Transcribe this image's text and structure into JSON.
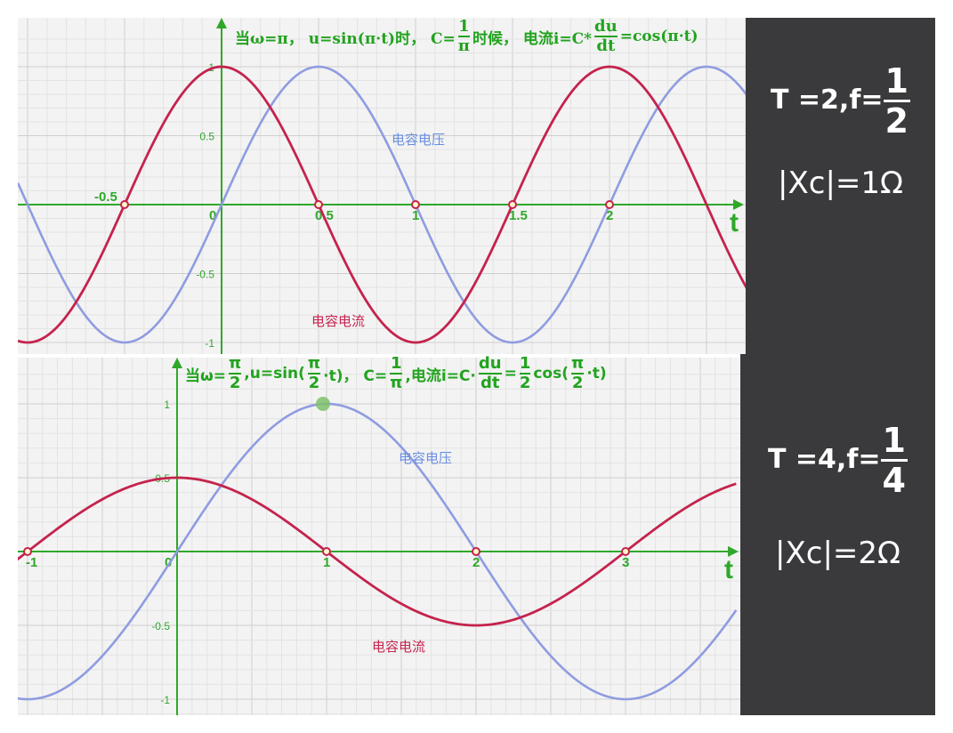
{
  "colors": {
    "voltage": "#8f9ce0",
    "current": "#c4234d",
    "axis": "#2fa82a",
    "side_bg": "#3a3a3c",
    "panel_bg": "#f3f3f3"
  },
  "top_formula": {
    "prefix": "当ω=π，  u=sin(π·t)时，  C=",
    "c_num": "1",
    "c_den": "π",
    "mid": "时候，  电流i=C*",
    "d_num": "du",
    "d_den": "dt",
    "suffix": "=cos(π·t)"
  },
  "bottom_formula": {
    "p1": "当ω=",
    "w_num": "π",
    "w_den": "2",
    "p2": ",u=sin(",
    "s_num": "π",
    "s_den": "2",
    "p3": "·t)，  C=",
    "c_num": "1",
    "c_den": "π",
    "p4": ",电流i=C·",
    "d_num": "du",
    "d_den": "dt",
    "p5": "=",
    "h_num": "1",
    "h_den": "2",
    "p6": "cos(",
    "k_num": "π",
    "k_den": "2",
    "p7": "·t)"
  },
  "side_top": {
    "tf_text": "T =2,f=",
    "f_num": "1",
    "f_den": "2",
    "xc_text": "|Xc|=1Ω"
  },
  "side_bottom": {
    "tf_text": "T =4,f=",
    "f_num": "1",
    "f_den": "4",
    "xc_text": "|Xc|=2Ω"
  },
  "chart_data": [
    {
      "type": "line",
      "xlim": [
        -1.05,
        2.73
      ],
      "ylim": [
        -1.05,
        1.0
      ],
      "x_ticks": [
        "-0.5",
        "0",
        "0.5",
        "1",
        "1.5",
        "2"
      ],
      "x_tick_values": [
        -0.5,
        0,
        0.5,
        1,
        1.5,
        2
      ],
      "y_ticks": [
        "1",
        "0.5",
        "-0.5",
        "-1"
      ],
      "y_tick_values": [
        1,
        0.5,
        -0.5,
        -1
      ],
      "xlabel": "t",
      "grid": true,
      "series": [
        {
          "name": "电容电压",
          "function": "sin(pi*t)",
          "omega": 3.14159265,
          "amplitude": 1,
          "phase": "sin"
        },
        {
          "name": "电容电流",
          "function": "cos(pi*t)",
          "omega": 3.14159265,
          "amplitude": 1,
          "phase": "cos"
        }
      ],
      "zero_crossings": [
        -0.5,
        0.5,
        1,
        1.5,
        2
      ]
    },
    {
      "type": "line",
      "xlim": [
        -1.1,
        3.74
      ],
      "ylim": [
        -1.0,
        1.0
      ],
      "x_ticks": [
        "-1",
        "0",
        "1",
        "2",
        "3"
      ],
      "x_tick_values": [
        -1,
        0,
        1,
        2,
        3
      ],
      "y_ticks": [
        "1",
        "0.5",
        "-0.5",
        "-1"
      ],
      "y_tick_values": [
        1,
        0.5,
        -0.5,
        -1
      ],
      "xlabel": "t",
      "grid": true,
      "series": [
        {
          "name": "电容电压",
          "function": "sin(pi/2*t)",
          "omega": 1.5707963,
          "amplitude": 1,
          "phase": "sin"
        },
        {
          "name": "电容电流",
          "function": "0.5*cos(pi/2*t)",
          "omega": 1.5707963,
          "amplitude": 0.5,
          "phase": "cos"
        }
      ],
      "zero_crossings": [
        -1,
        1,
        2,
        3
      ],
      "highlight_point": [
        1,
        1
      ]
    }
  ]
}
